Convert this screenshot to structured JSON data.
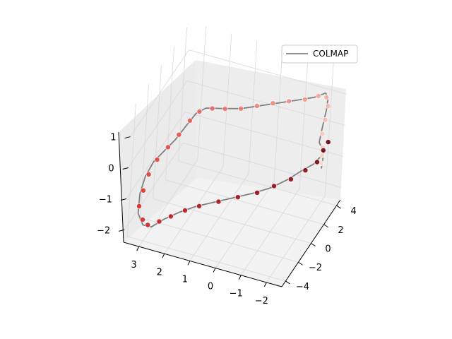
{
  "chart_data": {
    "type": "scatter3d",
    "title": "",
    "xlabel": "",
    "ylabel": "",
    "zlabel": "",
    "xlim": [
      -4.6,
      4.6
    ],
    "ylim": [
      -2.6,
      3.6
    ],
    "zlim": [
      -2.4,
      1.9
    ],
    "x_ticks": [
      4,
      2,
      0,
      -2,
      -4
    ],
    "y_ticks": [
      3,
      2,
      1,
      0,
      -1,
      -2
    ],
    "z_ticks": [
      1,
      0,
      -1,
      -2
    ],
    "grid": true,
    "legend": {
      "placement": "top-right",
      "entries": [
        "COLMAP"
      ]
    },
    "series": [
      {
        "name": "COLMAP",
        "kind": "line",
        "color": "#808080",
        "points": [
          [
            4.1,
            -1.9,
            -1.4
          ],
          [
            3.8,
            -2.0,
            -1.0
          ],
          [
            3.4,
            -2.1,
            -0.6
          ],
          [
            3.0,
            -2.0,
            -0.2
          ],
          [
            2.9,
            -2.1,
            0.3
          ],
          [
            3.0,
            -2.2,
            0.9
          ],
          [
            2.7,
            -2.3,
            1.4
          ],
          [
            2.2,
            -2.3,
            1.7
          ],
          [
            1.7,
            -2.0,
            1.65
          ],
          [
            1.2,
            -1.5,
            1.6
          ],
          [
            0.6,
            -0.9,
            1.55
          ],
          [
            0.0,
            -0.3,
            1.5
          ],
          [
            -0.6,
            0.3,
            1.45
          ],
          [
            -1.2,
            0.9,
            1.5
          ],
          [
            -1.7,
            1.4,
            1.55
          ],
          [
            -2.0,
            1.7,
            1.4
          ],
          [
            -2.2,
            2.0,
            1.0
          ],
          [
            -2.6,
            2.3,
            0.6
          ],
          [
            -3.0,
            2.6,
            0.3
          ],
          [
            -3.4,
            2.9,
            0.0
          ],
          [
            -3.8,
            3.1,
            -0.4
          ],
          [
            -4.1,
            3.2,
            -0.9
          ],
          [
            -4.2,
            3.2,
            -1.5
          ],
          [
            -3.7,
            3.1,
            -2.0
          ],
          [
            -3.1,
            2.9,
            -2.2
          ],
          [
            -2.4,
            2.6,
            -2.1
          ],
          [
            -1.7,
            2.2,
            -2.0
          ],
          [
            -1.0,
            1.7,
            -1.9
          ],
          [
            -0.4,
            1.1,
            -1.8
          ],
          [
            0.2,
            0.5,
            -1.7
          ],
          [
            0.8,
            -0.1,
            -1.6
          ],
          [
            1.4,
            -0.6,
            -1.5
          ],
          [
            2.0,
            -1.1,
            -1.3
          ],
          [
            2.6,
            -1.5,
            -1.1
          ],
          [
            3.2,
            -1.8,
            -1.0
          ],
          [
            3.7,
            -2.0,
            -0.8
          ]
        ]
      },
      {
        "name": "",
        "kind": "scatter",
        "colormap": "Reds",
        "color_light": "#fde0d2",
        "color_dark": "#67000d",
        "points": [
          [
            4.0,
            -1.9,
            -1.2
          ],
          [
            3.6,
            -2.0,
            -0.8
          ],
          [
            3.2,
            -2.1,
            -0.4
          ],
          [
            3.0,
            -2.1,
            0.1
          ],
          [
            2.9,
            -2.2,
            0.6
          ],
          [
            2.8,
            -2.3,
            1.1
          ],
          [
            2.4,
            -2.3,
            1.5
          ],
          [
            1.9,
            -2.1,
            1.65
          ],
          [
            1.4,
            -1.7,
            1.6
          ],
          [
            0.9,
            -1.2,
            1.58
          ],
          [
            0.4,
            -0.7,
            1.55
          ],
          [
            -0.1,
            -0.2,
            1.5
          ],
          [
            -0.6,
            0.3,
            1.45
          ],
          [
            -1.1,
            0.8,
            1.48
          ],
          [
            -1.5,
            1.2,
            1.52
          ],
          [
            -1.9,
            1.6,
            1.45
          ],
          [
            -2.1,
            1.9,
            1.15
          ],
          [
            -2.5,
            2.2,
            0.75
          ],
          [
            -2.9,
            2.5,
            0.4
          ],
          [
            -3.3,
            2.8,
            0.05
          ],
          [
            -3.7,
            3.0,
            -0.35
          ],
          [
            -4.0,
            3.1,
            -0.8
          ],
          [
            -4.1,
            3.2,
            -1.3
          ],
          [
            -3.8,
            3.1,
            -1.8
          ],
          [
            -3.3,
            3.0,
            -2.1
          ],
          [
            -2.7,
            2.7,
            -2.1
          ],
          [
            -2.1,
            2.4,
            -2.05
          ],
          [
            -1.5,
            2.0,
            -1.95
          ],
          [
            -0.9,
            1.6,
            -1.9
          ],
          [
            -0.3,
            1.0,
            -1.8
          ],
          [
            0.3,
            0.4,
            -1.7
          ],
          [
            0.9,
            -0.2,
            -1.6
          ],
          [
            1.5,
            -0.7,
            -1.45
          ],
          [
            2.1,
            -1.2,
            -1.3
          ],
          [
            2.7,
            -1.6,
            -1.1
          ],
          [
            3.3,
            -1.9,
            -0.95
          ],
          [
            3.8,
            -2.0,
            -0.7
          ],
          [
            4.1,
            -2.1,
            -0.5
          ]
        ]
      }
    ]
  }
}
